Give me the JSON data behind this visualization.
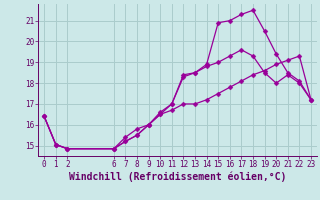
{
  "xlabel": "Windchill (Refroidissement éolien,°C)",
  "bg_color": "#cce8e8",
  "grid_color": "#aacccc",
  "line_color": "#990099",
  "xlim": [
    -0.5,
    23.5
  ],
  "ylim": [
    14.5,
    21.8
  ],
  "yticks": [
    15,
    16,
    17,
    18,
    19,
    20,
    21
  ],
  "xticks": [
    0,
    1,
    2,
    6,
    7,
    8,
    9,
    10,
    11,
    12,
    13,
    14,
    15,
    16,
    17,
    18,
    19,
    20,
    21,
    22,
    23
  ],
  "line1_x": [
    0,
    1,
    2,
    6,
    7,
    8,
    9,
    10,
    11,
    12,
    13,
    14,
    15,
    16,
    17,
    18,
    19,
    20,
    21,
    22,
    23
  ],
  "line1_y": [
    16.4,
    15.05,
    14.85,
    14.85,
    15.2,
    15.5,
    16.0,
    16.5,
    16.7,
    17.0,
    17.0,
    17.2,
    17.5,
    17.8,
    18.1,
    18.4,
    18.6,
    18.9,
    19.1,
    19.3,
    17.2
  ],
  "line2_x": [
    0,
    1,
    2,
    6,
    7,
    8,
    9,
    10,
    11,
    12,
    13,
    14,
    15,
    16,
    17,
    18,
    19,
    20,
    21,
    22,
    23
  ],
  "line2_y": [
    16.4,
    15.05,
    14.85,
    14.85,
    15.4,
    15.8,
    16.0,
    16.6,
    17.0,
    18.4,
    18.5,
    18.8,
    19.0,
    19.3,
    19.6,
    19.3,
    18.5,
    18.0,
    18.4,
    18.0,
    17.2
  ],
  "line3_x": [
    0,
    1,
    2,
    6,
    7,
    8,
    9,
    10,
    11,
    12,
    13,
    14,
    15,
    16,
    17,
    18,
    19,
    20,
    21,
    22,
    23
  ],
  "line3_y": [
    16.4,
    15.05,
    14.85,
    14.85,
    15.2,
    15.5,
    16.0,
    16.5,
    17.0,
    18.3,
    18.5,
    18.9,
    20.9,
    21.0,
    21.3,
    21.5,
    20.5,
    19.4,
    18.5,
    18.1,
    17.2
  ],
  "marker": "D",
  "markersize": 2.5,
  "linewidth": 0.9,
  "font_color": "#660066",
  "tick_fontsize": 5.5,
  "xlabel_fontsize": 7.0
}
